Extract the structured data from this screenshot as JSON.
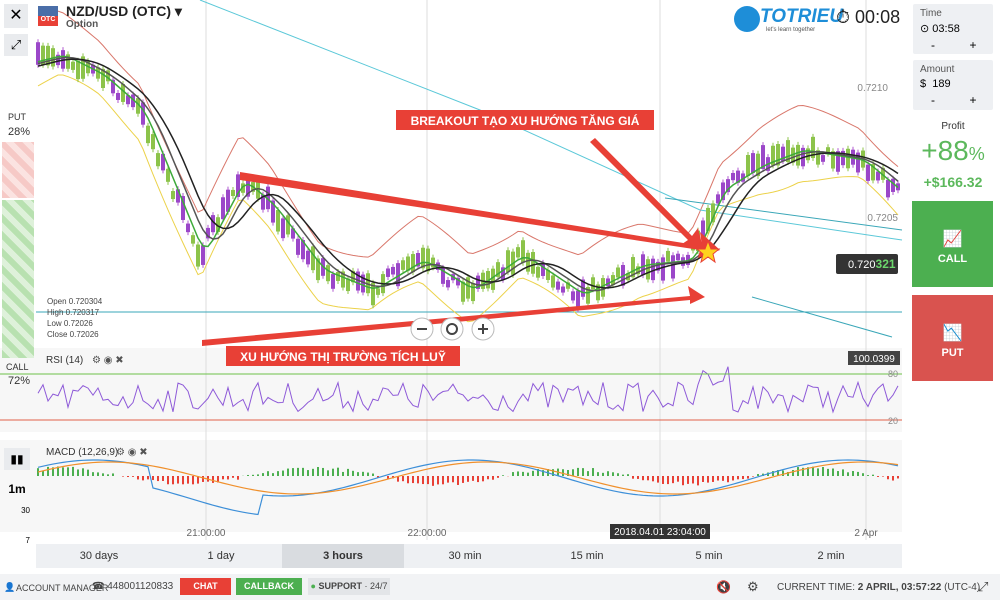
{
  "header": {
    "pair": "NZD/USD (OTC)",
    "subtitle": "Option",
    "badge": "OTC",
    "logo": "TOTRIEU",
    "logo_tagline": "let's learn together",
    "timer": "00:08"
  },
  "panel": {
    "time_label": "Time",
    "time_value": "03:58",
    "amount_label": "Amount",
    "currency": "$",
    "amount_value": "189",
    "minus": "-",
    "plus": "+",
    "profit_label": "Profit",
    "profit_percent": "+88",
    "percent_sign": "%",
    "profit_amount": "+$166.32",
    "call": "CALL",
    "put": "PUT"
  },
  "sentiment": {
    "put_label": "PUT",
    "put_value": "28%",
    "call_label": "CALL",
    "call_value": "72%"
  },
  "chart": {
    "price_labels": [
      "0.7210",
      "0.7205"
    ],
    "current_price_main": "0.720",
    "current_price_tail": "321",
    "ohlc": [
      "Open  0.720304",
      "High  0.720317",
      "Low   0.72026",
      "Close  0.72026"
    ],
    "annotations": [
      "BREAKOUT TẠO XU HƯỚNG TĂNG GIÁ",
      "XU HƯỚNG THỊ TRƯỜNG TÍCH LUỸ"
    ],
    "rsi": {
      "label": "RSI (14)",
      "value": "100.0399",
      "upper": "80",
      "lower": "20"
    },
    "macd": {
      "label": "MACD (12,26,9)"
    },
    "time_labels": [
      "21:00:00",
      "22:00:00",
      "2 Apr"
    ],
    "cursor_time": "2018.04.01 23:04:00"
  },
  "toolbar": {
    "timeframe": "1m",
    "tool1": "30",
    "tool2": "7"
  },
  "timeframes": [
    "30 days",
    "1 day",
    "3 hours",
    "30 min",
    "15 min",
    "5 min",
    "2 min"
  ],
  "footer": {
    "account_manager": "ACCOUNT MANAGER",
    "phone": "448001120833",
    "chat": "CHAT",
    "callback": "CALLBACK",
    "support": "SUPPORT",
    "support_hours": "· 24/7",
    "time_label": "CURRENT TIME:",
    "time_value": "2 APRIL, 03:57:22",
    "timezone": "(UTC-4)"
  }
}
